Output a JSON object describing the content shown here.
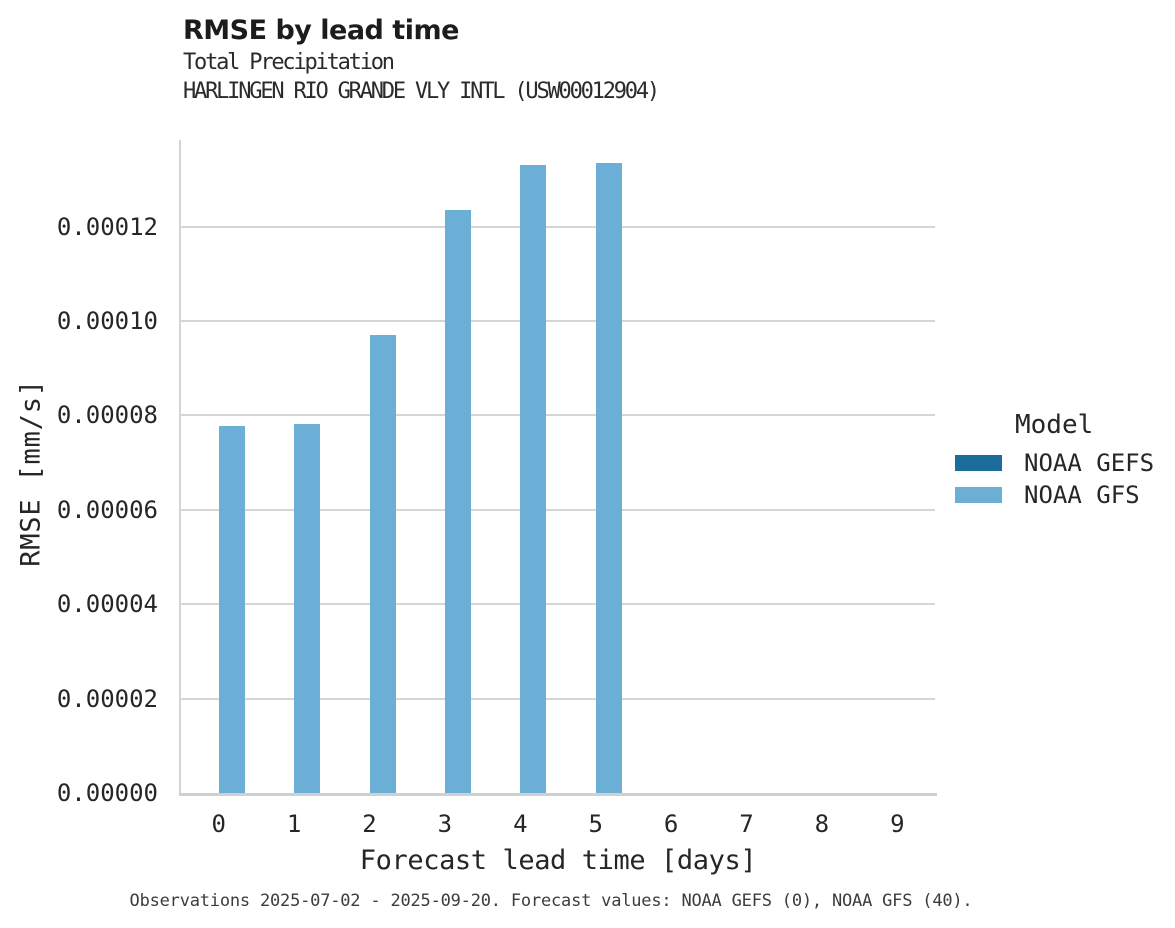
{
  "header": {
    "title": "RMSE by lead time",
    "subtitle": "Total Precipitation",
    "station": "HARLINGEN RIO GRANDE VLY INTL (USW00012904)"
  },
  "footer": {
    "note": "Observations 2025-07-02 - 2025-09-20. Forecast values: NOAA GEFS (0), NOAA GFS (40)."
  },
  "legend": {
    "title": "Model",
    "entries": [
      {
        "label": "NOAA GEFS",
        "color": "#1c6d9c"
      },
      {
        "label": "NOAA GFS",
        "color": "#6bafd6"
      }
    ]
  },
  "chart_data": {
    "type": "bar",
    "title": "RMSE by lead time",
    "subtitle": "Total Precipitation",
    "station": "HARLINGEN RIO GRANDE VLY INTL (USW00012904)",
    "xlabel": "Forecast lead time [days]",
    "ylabel": "RMSE [mm/s]",
    "categories": [
      "0",
      "1",
      "2",
      "3",
      "4",
      "5",
      "6",
      "7",
      "8",
      "9"
    ],
    "series": [
      {
        "name": "NOAA GEFS",
        "color": "#1c6d9c",
        "values": [
          null,
          null,
          null,
          null,
          null,
          null,
          null,
          null,
          null,
          null
        ]
      },
      {
        "name": "NOAA GFS",
        "color": "#6bafd6",
        "values": [
          7.77e-05,
          7.82e-05,
          9.7e-05,
          0.0001235,
          0.0001331,
          0.0001335,
          null,
          null,
          null,
          null
        ]
      }
    ],
    "ylim": [
      0,
      0.00013835
    ],
    "yticks": {
      "values": [
        0,
        2e-05,
        4e-05,
        6e-05,
        8e-05,
        0.0001,
        0.00012
      ],
      "labels": [
        "0.00000",
        "0.00002",
        "0.00004",
        "0.00006",
        "0.00008",
        "0.00010",
        "0.00012"
      ]
    },
    "grid": true,
    "legend_position": "right",
    "legend_title": "Model"
  }
}
